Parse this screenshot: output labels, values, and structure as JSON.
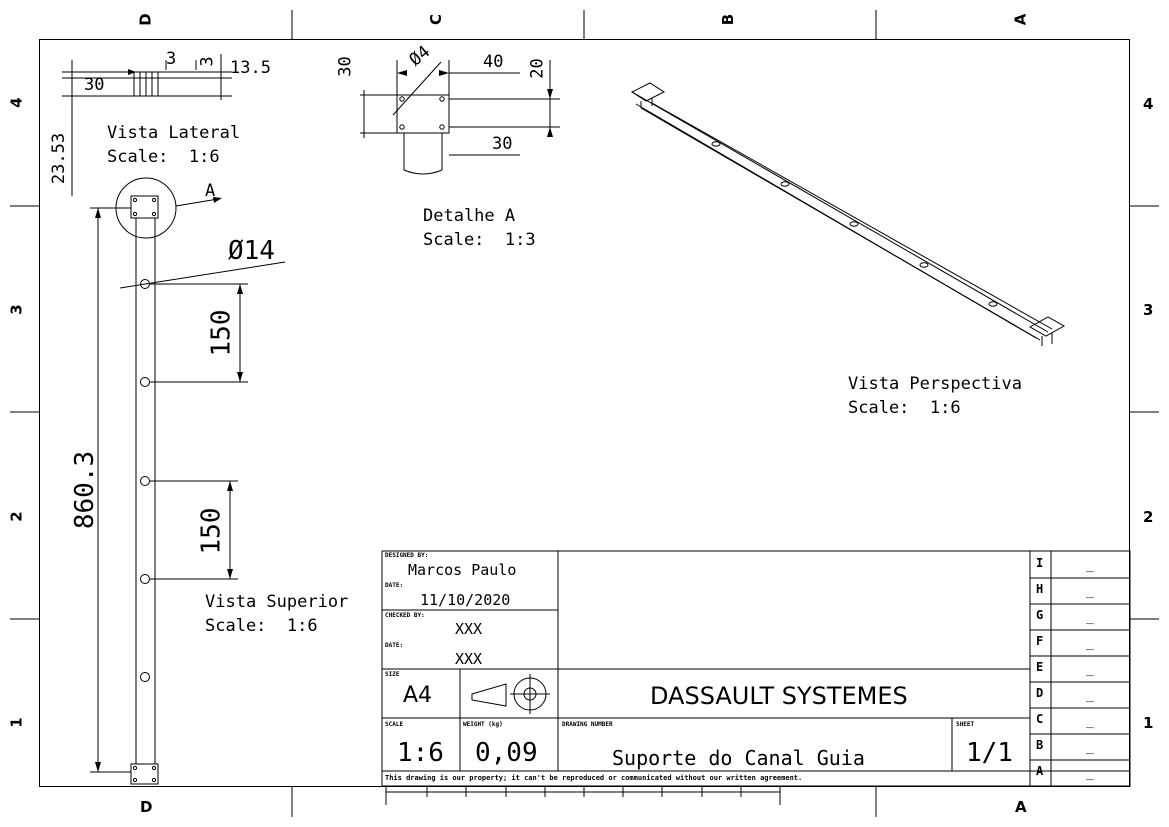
{
  "zones": {
    "top": [
      "D",
      "C",
      "B",
      "A"
    ],
    "bottom": [
      "D",
      "A"
    ],
    "left": [
      "4",
      "3",
      "2",
      "1"
    ],
    "right": [
      "4",
      "3",
      "2",
      "1"
    ]
  },
  "views": {
    "lateral": {
      "title": "Vista Lateral",
      "scale": "Scale:  1:6"
    },
    "detail": {
      "title": "Detalhe A",
      "scale": "Scale:  1:3"
    },
    "perspective": {
      "title": "Vista Perspectiva",
      "scale": "Scale:  1:6"
    },
    "superior": {
      "title": "Vista Superior",
      "scale": "Scale:  1:6"
    }
  },
  "dimensions": {
    "lat_3": "3",
    "lat_3b": "3",
    "lat_135": "13.5",
    "lat_30": "30",
    "lat_2353": "23.53",
    "det_30v": "30",
    "det_phi4": "Ø4",
    "det_40": "40",
    "det_20": "20",
    "det_30h": "30",
    "sup_phi14": "Ø14",
    "sup_150a": "150",
    "sup_150b": "150",
    "sup_8603": "860.3",
    "detail_marker": "A"
  },
  "title_block": {
    "designed_by_label": "DESIGNED BY:",
    "designed_by": "Marcos Paulo",
    "date_label": "DATE:",
    "date": "11/10/2020",
    "checked_by_label": "CHECKED BY:",
    "checked_by": "XXX",
    "date2_label": "DATE:",
    "date2": "XXX",
    "size_label": "SIZE",
    "size": "A4",
    "company": "DASSAULT SYSTEMES",
    "scale_label": "SCALE",
    "scale": "1:6",
    "weight_label": "WEIGHT (kg)",
    "weight": "0,09",
    "drawing_number_label": "DRAWING NUMBER",
    "drawing_number": "Suporte do Canal Guia",
    "sheet_label": "SHEET",
    "sheet": "1/1",
    "disclaimer": "This drawing is our property; it can't be reproduced or communicated without our written agreement.",
    "revisions": [
      {
        "letter": "I",
        "value": "_"
      },
      {
        "letter": "H",
        "value": "_"
      },
      {
        "letter": "G",
        "value": "_"
      },
      {
        "letter": "F",
        "value": "_"
      },
      {
        "letter": "E",
        "value": "_"
      },
      {
        "letter": "D",
        "value": "_"
      },
      {
        "letter": "C",
        "value": "_"
      },
      {
        "letter": "B",
        "value": "_"
      },
      {
        "letter": "A",
        "value": "_"
      }
    ]
  }
}
